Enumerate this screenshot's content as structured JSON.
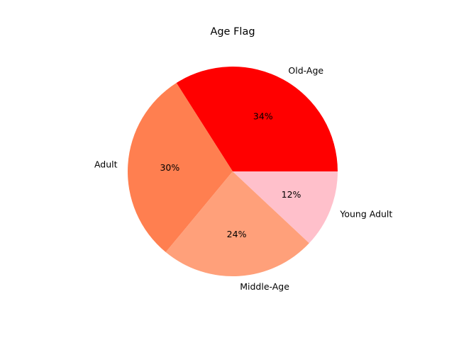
{
  "chart_data": {
    "type": "pie",
    "title": "Age Flag",
    "categories": [
      "Old-Age",
      "Adult",
      "Middle-Age",
      "Young Adult"
    ],
    "values": [
      34,
      30,
      24,
      12
    ],
    "percent_labels": [
      "34%",
      "30%",
      "24%",
      "12%"
    ],
    "colors": [
      "#ff0000",
      "#ff7f50",
      "#ffa07a",
      "#ffc0cb"
    ],
    "start_angle_deg": 0,
    "direction": "counterclockwise",
    "legend": "none"
  }
}
